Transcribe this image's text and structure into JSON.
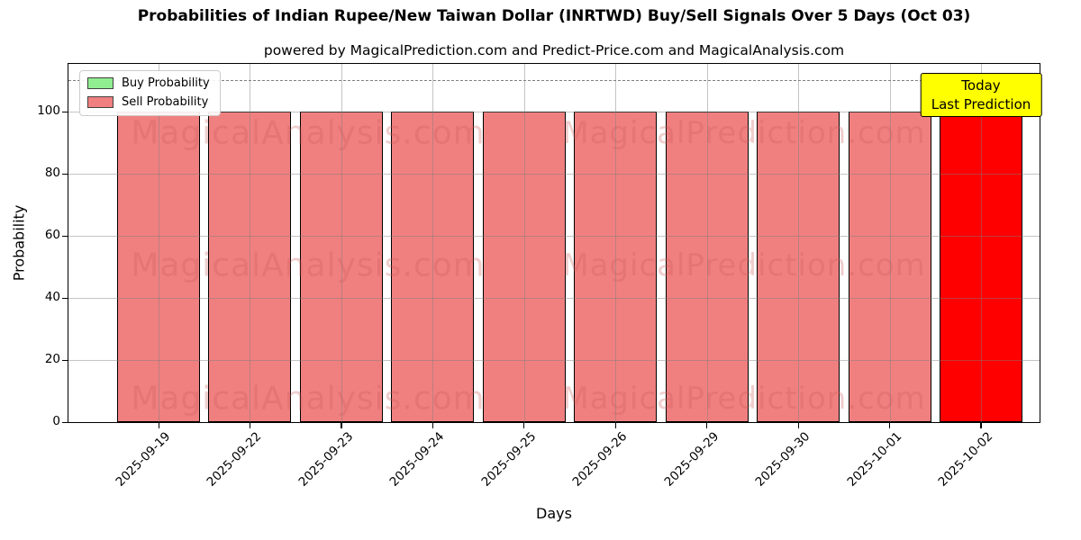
{
  "title": "Probabilities of Indian Rupee/New Taiwan Dollar (INRTWD) Buy/Sell Signals Over 5 Days (Oct 03)",
  "subtitle": "powered by MagicalPrediction.com and Predict-Price.com and MagicalAnalysis.com",
  "legend": {
    "items": [
      {
        "label": "Buy Probability",
        "color": "#90EE90"
      },
      {
        "label": "Sell Probability",
        "color": "#F08080"
      }
    ]
  },
  "annotation": {
    "line1": "Today",
    "line2": "Last Prediction",
    "bg_color": "#FFFF00"
  },
  "axes": {
    "xlabel": "Days",
    "ylabel": "Probability",
    "yticks": [
      0,
      20,
      40,
      60,
      80,
      100
    ],
    "ymax": 115.3,
    "dashed_threshold": 110
  },
  "watermarks": {
    "left_text": "MagicalAnalysis.com",
    "right_text": "MagicalPrediction.com"
  },
  "chart_data": {
    "type": "bar",
    "title": "Probabilities of Indian Rupee/New Taiwan Dollar (INRTWD) Buy/Sell Signals Over 5 Days (Oct 03)",
    "xlabel": "Days",
    "ylabel": "Probability",
    "ylim": [
      0,
      115
    ],
    "grid": true,
    "legend_position": "upper left",
    "dashed_threshold": 110,
    "categories": [
      "2025-09-19",
      "2025-09-22",
      "2025-09-23",
      "2025-09-24",
      "2025-09-25",
      "2025-09-26",
      "2025-09-29",
      "2025-09-30",
      "2025-10-01",
      "2025-10-02"
    ],
    "series": [
      {
        "name": "Buy Probability",
        "color": "#90EE90",
        "values": [
          0,
          0,
          0,
          0,
          0,
          0,
          0,
          0,
          0,
          0
        ]
      },
      {
        "name": "Sell Probability",
        "color": "#F08080",
        "values": [
          100,
          100,
          100,
          100,
          100,
          100,
          100,
          100,
          100,
          100
        ]
      }
    ],
    "highlight": {
      "index": 9,
      "color": "#FF0000",
      "note": "Today / Last Prediction"
    }
  }
}
